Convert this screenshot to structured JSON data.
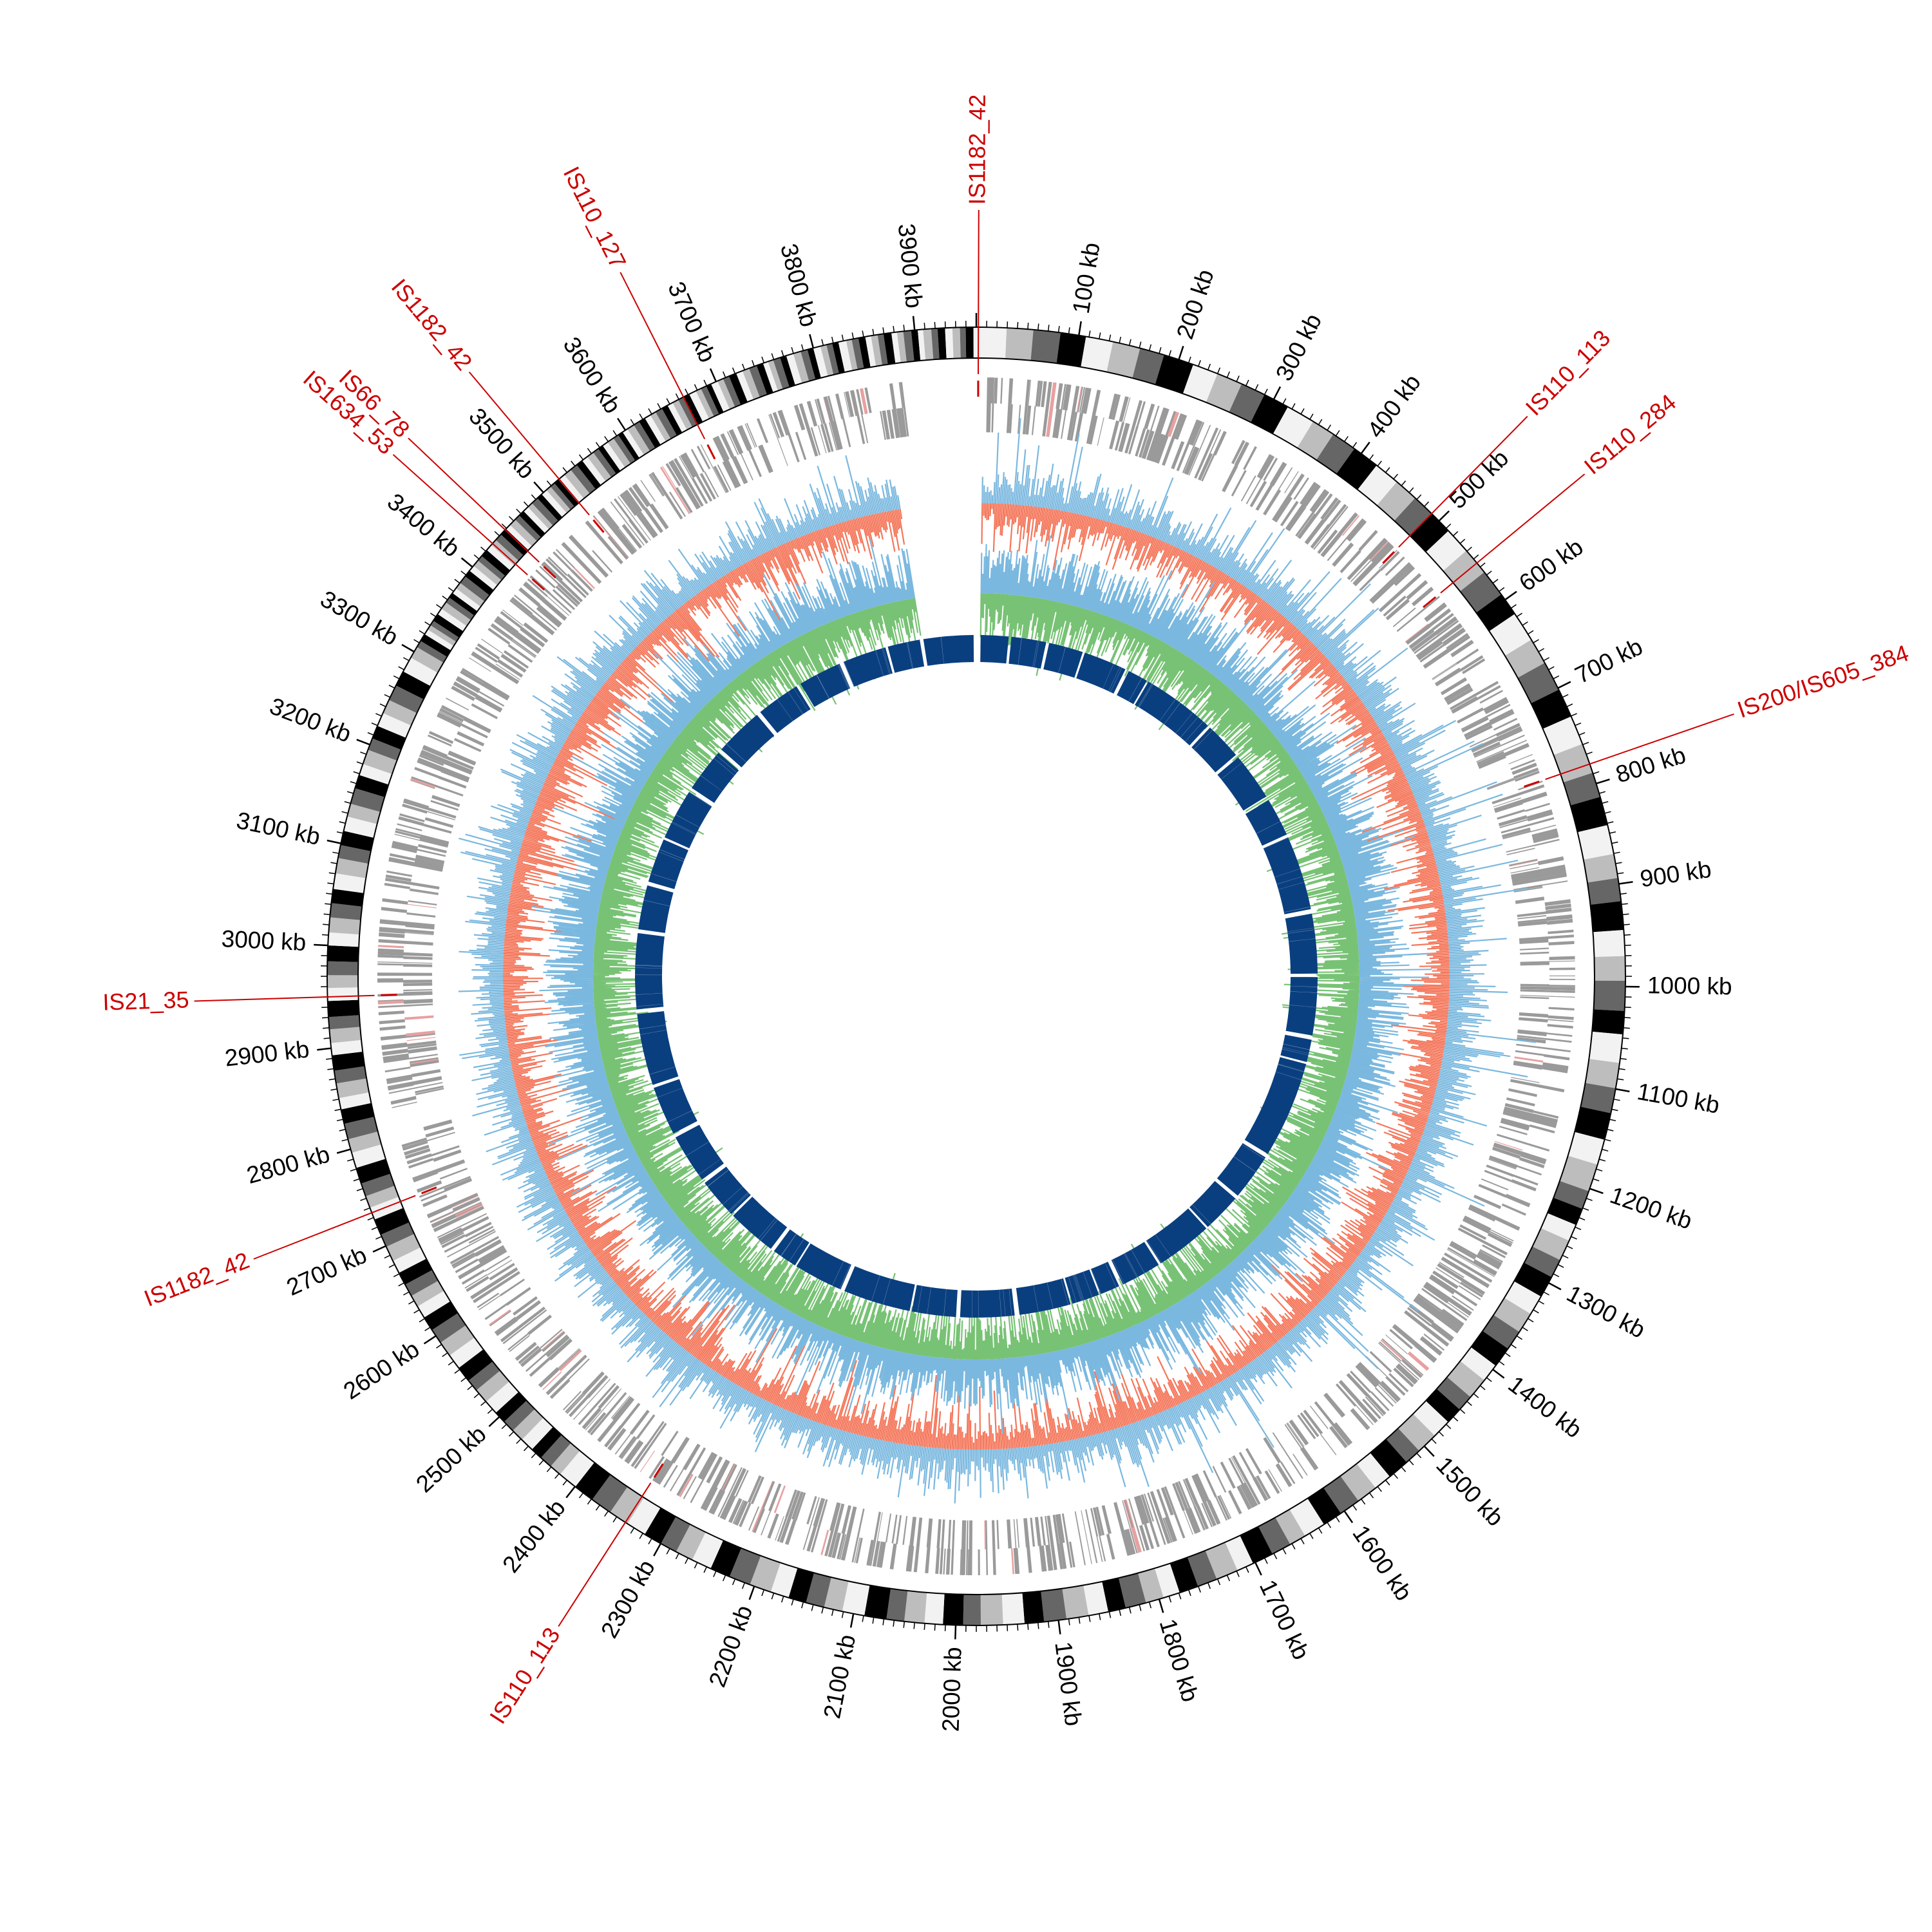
{
  "genome": {
    "length_kb": 3960,
    "coordinate_labels": [
      "100 kb",
      "200 kb",
      "300 kb",
      "400 kb",
      "500 kb",
      "600 kb",
      "700 kb",
      "800 kb",
      "900 kb",
      "1000 kb",
      "1100 kb",
      "1200 kb",
      "1300 kb",
      "1400 kb",
      "1500 kb",
      "1600 kb",
      "1700 kb",
      "1800 kb",
      "1900 kb",
      "2000 kb",
      "2100 kb",
      "2200 kb",
      "2300 kb",
      "2400 kb",
      "2500 kb",
      "2600 kb",
      "2700 kb",
      "2800 kb",
      "2900 kb",
      "3000 kb",
      "3100 kb",
      "3200 kb",
      "3300 kb",
      "3400 kb",
      "3500 kb",
      "3600 kb",
      "3700 kb",
      "3800 kb",
      "3900 kb"
    ],
    "coordinate_values_kb": [
      100,
      200,
      300,
      400,
      500,
      600,
      700,
      800,
      900,
      1000,
      1100,
      1200,
      1300,
      1400,
      1500,
      1600,
      1700,
      1800,
      1900,
      2000,
      2100,
      2200,
      2300,
      2400,
      2500,
      2600,
      2700,
      2800,
      2900,
      3000,
      3100,
      3200,
      3300,
      3400,
      3500,
      3600,
      3700,
      3800,
      3900
    ]
  },
  "insertion_sequences": [
    {
      "label": "IS1182_42",
      "position_kb": 2
    },
    {
      "label": "IS110_113",
      "position_kb": 490
    },
    {
      "label": "IS110_284",
      "position_kb": 555
    },
    {
      "label": "IS200/IS605_384",
      "position_kb": 780
    },
    {
      "label": "IS110_113",
      "position_kb": 2340
    },
    {
      "label": "IS1182_42",
      "position_kb": 2735
    },
    {
      "label": "IS21_35",
      "position_kb": 2950
    },
    {
      "label": "IS1634_53",
      "position_kb": 3430
    },
    {
      "label": "IS66_78",
      "position_kb": 3448
    },
    {
      "label": "IS1182_42",
      "position_kb": 3520
    },
    {
      "label": "IS110_127",
      "position_kb": 3665
    }
  ],
  "colors": {
    "label_red": "#cc0000",
    "feature_gray": "#9a9a9a",
    "skew_blue": "#7ab8df",
    "skew_red": "#f4765a",
    "gc_green": "#78c275",
    "gc_blue": "#7ab8df",
    "inner_ring": "#0a3f7f"
  }
}
